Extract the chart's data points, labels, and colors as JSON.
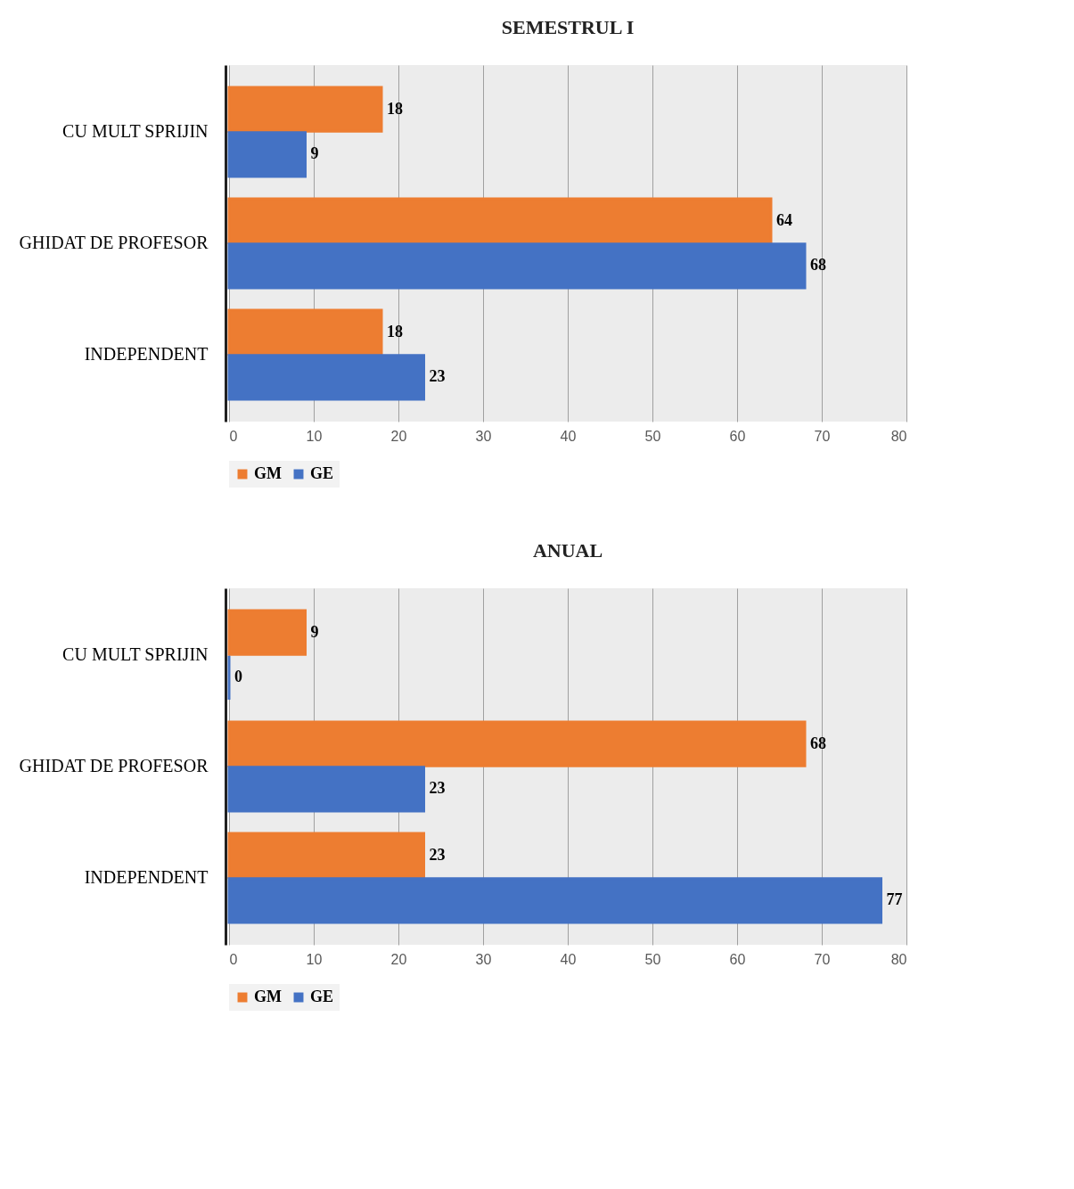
{
  "chart_data": [
    {
      "type": "bar",
      "title": "SEMESTRUL I",
      "orientation": "horizontal",
      "categories": [
        "CU MULT SPRIJIN",
        "GHIDAT DE PROFESOR",
        "INDEPENDENT"
      ],
      "series": [
        {
          "name": "GM",
          "color": "#ed7d31",
          "values": [
            18,
            64,
            18
          ]
        },
        {
          "name": "GE",
          "color": "#4472c4",
          "values": [
            9,
            68,
            23
          ]
        }
      ],
      "xlim": [
        0,
        80
      ],
      "xticks": [
        0,
        10,
        20,
        30,
        40,
        50,
        60,
        70,
        80
      ],
      "grid": "x",
      "legend": "bottom",
      "data_labels": true
    },
    {
      "type": "bar",
      "title": "ANUAL",
      "orientation": "horizontal",
      "categories": [
        "CU MULT SPRIJIN",
        "GHIDAT DE PROFESOR",
        "INDEPENDENT"
      ],
      "series": [
        {
          "name": "GM",
          "color": "#ed7d31",
          "values": [
            9,
            68,
            23
          ]
        },
        {
          "name": "GE",
          "color": "#4472c4",
          "values": [
            0,
            23,
            77
          ]
        }
      ],
      "xlim": [
        0,
        80
      ],
      "xticks": [
        0,
        10,
        20,
        30,
        40,
        50,
        60,
        70,
        80
      ],
      "grid": "x",
      "legend": "bottom",
      "data_labels": true
    }
  ]
}
